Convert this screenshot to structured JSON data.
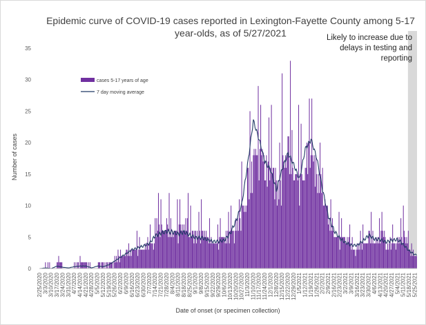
{
  "chart_data": {
    "type": "bar",
    "title": "Epidemic curve of COVID-19 cases reported in Lexington-Fayette County among 5-17 year-olds, as of 5/27/2021",
    "title_lines": [
      "Epidemic curve of COVID-19 cases reported in Lexington-Fayette County among 5-17",
      "year-olds, as of 5/27/2021"
    ],
    "xlabel": "Date of onset (or specimen collection)",
    "ylabel": "Number of cases",
    "ylim": [
      0,
      35
    ],
    "y_ticks": [
      0,
      5,
      10,
      15,
      20,
      25,
      30,
      35
    ],
    "x_range": [
      "2/25/2020",
      "5/27/2021"
    ],
    "x_tick_labels": [
      "2/25/2020",
      "3/3/2020",
      "3/10/2020",
      "3/17/2020",
      "3/24/2020",
      "3/31/2020",
      "4/7/2020",
      "4/14/2020",
      "4/21/2020",
      "4/28/2020",
      "5/5/2020",
      "5/12/2020",
      "5/19/2020",
      "5/26/2020",
      "6/2/2020",
      "6/9/2020",
      "6/16/2020",
      "6/23/2020",
      "6/30/2020",
      "7/7/2020",
      "7/14/2020",
      "7/21/2020",
      "7/28/2020",
      "8/4/2020",
      "8/11/2020",
      "8/18/2020",
      "8/25/2020",
      "9/1/2020",
      "9/8/2020",
      "9/15/2020",
      "9/22/2020",
      "9/29/2020",
      "10/6/2020",
      "10/13/2020",
      "10/20/2020",
      "10/27/2020",
      "11/3/2020",
      "11/10/2020",
      "11/17/2020",
      "11/24/2020",
      "12/1/2020",
      "12/8/2020",
      "12/15/2020",
      "12/22/2020",
      "12/29/2020",
      "1/5/2021",
      "1/12/2021",
      "1/19/2021",
      "1/26/2021",
      "2/2/2021",
      "2/9/2021",
      "2/16/2021",
      "2/23/2021",
      "3/2/2021",
      "3/9/2021",
      "3/16/2021",
      "3/23/2021",
      "3/30/2021",
      "4/6/2021",
      "4/13/2021",
      "4/20/2021",
      "4/27/2021",
      "5/4/2021",
      "5/11/2021",
      "5/18/2021",
      "5/25/2021"
    ],
    "legend_position": "upper-left inside plot",
    "grid": false,
    "annotation": {
      "text_lines": [
        "Likely to increase due to",
        "delays in testing and",
        "reporting"
      ],
      "shaded_from": "5/17/2021",
      "shaded_to": "5/27/2021",
      "shade_color": "#d9d9d9"
    },
    "series": [
      {
        "name": "cases 5-17 years of age",
        "kind": "bar",
        "color": "#7030a0",
        "weekly_peaks": [
          0,
          1,
          0,
          2,
          0,
          0,
          1,
          2,
          1,
          0,
          1,
          1,
          1,
          3,
          3,
          4,
          6,
          5,
          5,
          7,
          12,
          11,
          12,
          11,
          11,
          12,
          10,
          9,
          11,
          8,
          7,
          8,
          9,
          10,
          11,
          17,
          25,
          29,
          26,
          24,
          26,
          20,
          31,
          33,
          26,
          23,
          27,
          27,
          20,
          16,
          11,
          9,
          8,
          7,
          5,
          6,
          7,
          9,
          8,
          9,
          5,
          7,
          8,
          10,
          4,
          4
        ],
        "weekly_daily_level": [
          0,
          0,
          0,
          0.3,
          0,
          0,
          0.3,
          0.3,
          0.3,
          0,
          0.3,
          0.3,
          0.5,
          1,
          1.5,
          2,
          2.5,
          3,
          3,
          3.5,
          4.5,
          5,
          5,
          5,
          4.5,
          5,
          4.5,
          4,
          4,
          4,
          4,
          4,
          4,
          5,
          6.5,
          8,
          13,
          21,
          19,
          15,
          14,
          11,
          14,
          16,
          14,
          12,
          18,
          18,
          15,
          11,
          7,
          5,
          4,
          3.5,
          3,
          3,
          4,
          5,
          4,
          4,
          3.5,
          4,
          4,
          3,
          2,
          1.5
        ]
      },
      {
        "name": "7 day moving average",
        "kind": "line",
        "color": "#1f3864",
        "weekly_values": [
          0,
          0.1,
          0,
          0.4,
          0.2,
          0.1,
          0.3,
          0.4,
          0.4,
          0.1,
          0.4,
          0.3,
          0.6,
          1.2,
          1.8,
          2.4,
          3.0,
          3.3,
          3.6,
          4.0,
          5.2,
          5.6,
          5.9,
          5.8,
          5.5,
          5.8,
          5.3,
          4.9,
          4.9,
          4.6,
          4.3,
          4.3,
          4.5,
          5.6,
          7.6,
          10.2,
          16.5,
          23.5,
          20.5,
          17.0,
          15.6,
          12.5,
          15.8,
          18.3,
          16.5,
          14.2,
          19.0,
          20.5,
          17.5,
          12.5,
          8.3,
          6.0,
          4.8,
          4.1,
          3.7,
          3.7,
          4.4,
          5.3,
          4.7,
          4.6,
          4.2,
          4.5,
          4.6,
          3.8,
          2.8,
          2.2
        ]
      }
    ]
  }
}
